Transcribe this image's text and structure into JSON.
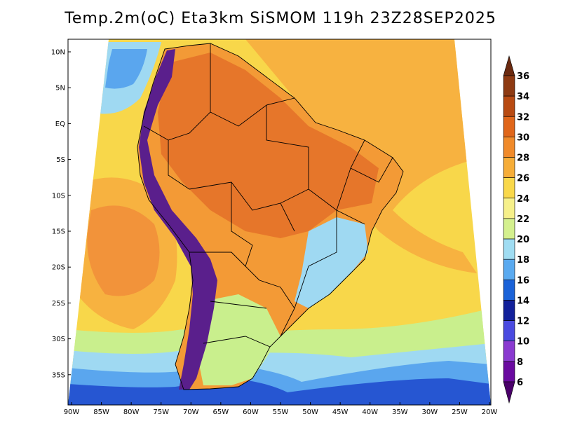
{
  "title": "Temp.2m(oC) Eta3km SiSMOM 119h 23Z28SEP2025",
  "lat_labels": [
    "10N",
    "5N",
    "EQ",
    "5S",
    "10S",
    "15S",
    "20S",
    "25S",
    "30S",
    "35S"
  ],
  "lon_labels": [
    "90W",
    "85W",
    "80W",
    "75W",
    "70W",
    "65W",
    "60W",
    "55W",
    "50W",
    "45W",
    "40W",
    "35W",
    "30W",
    "25W",
    "20W"
  ],
  "colorbar": {
    "labels": [
      "36",
      "34",
      "32",
      "30",
      "28",
      "26",
      "24",
      "22",
      "20",
      "18",
      "16",
      "14",
      "12",
      "10",
      "8",
      "6"
    ],
    "colors": [
      "#6b2a10",
      "#8e3a12",
      "#b84a12",
      "#e0661a",
      "#f08a2a",
      "#f6ad38",
      "#f9d84a",
      "#f6f08a",
      "#d4f08e",
      "#9fdcf2",
      "#5aaaf0",
      "#1a62d8",
      "#12209a",
      "#4a4ae0",
      "#8a3ad0",
      "#6a0aa0",
      "#4a006a"
    ]
  },
  "legend_colors": {
    "ocean_base": "#f8d74a",
    "ocean_warm": "#f7b240",
    "ocean_hot": "#f2933a",
    "cool_20": "#c9ef8d",
    "cool_18": "#9fd9f2",
    "cold_16": "#5aa6ee",
    "cold_14": "#2656d2",
    "land_base": "#f39a36",
    "land_hot": "#e6762a",
    "andes": "#5a1f8c",
    "border": "#000000"
  }
}
